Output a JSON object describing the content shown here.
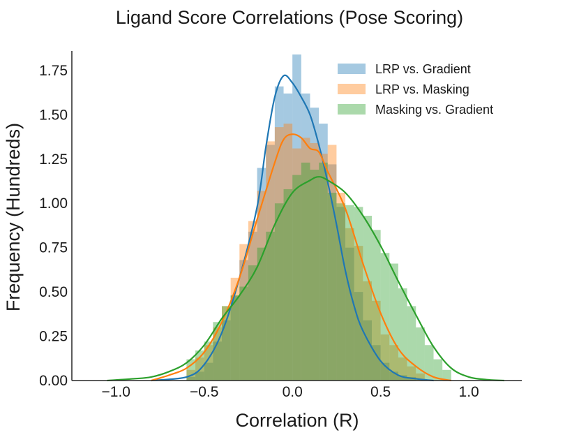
{
  "chart_data": {
    "type": "histogram",
    "title": "Ligand Score Correlations (Pose Scoring)",
    "xlabel": "Correlation (R)",
    "ylabel": "Frequency (Hundreds)",
    "xlim": [
      -1.25,
      1.3
    ],
    "ylim": [
      0,
      1.86
    ],
    "xticks": [
      -1.0,
      -0.5,
      0.0,
      0.5,
      1.0
    ],
    "xtick_labels": [
      "−1.0",
      "−0.5",
      "0.0",
      "0.5",
      "1.0"
    ],
    "yticks": [
      0.0,
      0.25,
      0.5,
      0.75,
      1.0,
      1.25,
      1.5,
      1.75
    ],
    "ytick_labels": [
      "0.00",
      "0.25",
      "0.50",
      "0.75",
      "1.00",
      "1.25",
      "1.50",
      "1.75"
    ],
    "grid": false,
    "legend_position": "top-right",
    "series": [
      {
        "name": "LRP vs. Gradient",
        "color": "#1f77b4",
        "bin_edges": [
          -0.6,
          -0.55,
          -0.5,
          -0.45,
          -0.4,
          -0.35,
          -0.3,
          -0.25,
          -0.2,
          -0.15,
          -0.1,
          -0.05,
          0.0,
          0.05,
          0.1,
          0.15,
          0.2,
          0.25,
          0.3,
          0.35,
          0.4,
          0.45,
          0.5,
          0.55,
          0.6,
          0.65,
          0.7
        ],
        "hist_values": [
          0.02,
          0.05,
          0.1,
          0.22,
          0.34,
          0.48,
          0.68,
          0.84,
          1.2,
          1.33,
          1.66,
          1.62,
          1.84,
          1.62,
          1.54,
          1.45,
          1.22,
          0.98,
          0.75,
          0.5,
          0.34,
          0.2,
          0.1,
          0.05,
          0.03,
          0.02
        ],
        "kde_x": [
          -0.8,
          -0.6,
          -0.5,
          -0.4,
          -0.3,
          -0.2,
          -0.15,
          -0.1,
          -0.05,
          0.0,
          0.05,
          0.1,
          0.15,
          0.2,
          0.25,
          0.3,
          0.35,
          0.4,
          0.5,
          0.6,
          0.7,
          0.8
        ],
        "kde_y": [
          0.0,
          0.02,
          0.09,
          0.27,
          0.58,
          0.98,
          1.32,
          1.6,
          1.72,
          1.68,
          1.6,
          1.5,
          1.33,
          1.12,
          0.88,
          0.62,
          0.42,
          0.28,
          0.11,
          0.03,
          0.01,
          0.0
        ]
      },
      {
        "name": "LRP vs. Masking",
        "color": "#ff7f0e",
        "bin_edges": [
          -0.6,
          -0.55,
          -0.5,
          -0.45,
          -0.4,
          -0.35,
          -0.3,
          -0.25,
          -0.2,
          -0.15,
          -0.1,
          -0.05,
          0.0,
          0.05,
          0.1,
          0.15,
          0.2,
          0.25,
          0.3,
          0.35,
          0.4,
          0.45,
          0.5,
          0.55,
          0.6,
          0.65,
          0.7,
          0.75
        ],
        "hist_values": [
          0.06,
          0.13,
          0.2,
          0.3,
          0.42,
          0.58,
          0.77,
          0.9,
          1.07,
          1.35,
          1.43,
          1.45,
          1.31,
          1.37,
          1.34,
          1.28,
          1.33,
          1.06,
          0.86,
          0.76,
          0.56,
          0.45,
          0.26,
          0.2,
          0.13,
          0.08,
          0.04
        ],
        "kde_x": [
          -0.8,
          -0.7,
          -0.6,
          -0.5,
          -0.4,
          -0.3,
          -0.2,
          -0.1,
          -0.05,
          0.0,
          0.05,
          0.1,
          0.15,
          0.2,
          0.3,
          0.4,
          0.5,
          0.6,
          0.7,
          0.8,
          0.9
        ],
        "kde_y": [
          0.0,
          0.03,
          0.07,
          0.16,
          0.33,
          0.58,
          0.91,
          1.23,
          1.36,
          1.39,
          1.37,
          1.31,
          1.29,
          1.18,
          0.97,
          0.66,
          0.38,
          0.18,
          0.08,
          0.02,
          0.0
        ]
      },
      {
        "name": "Masking vs. Gradient",
        "color": "#2ca02c",
        "bin_edges": [
          -0.6,
          -0.55,
          -0.5,
          -0.45,
          -0.4,
          -0.35,
          -0.3,
          -0.25,
          -0.2,
          -0.15,
          -0.1,
          -0.05,
          0.0,
          0.05,
          0.1,
          0.15,
          0.2,
          0.25,
          0.3,
          0.35,
          0.4,
          0.45,
          0.5,
          0.55,
          0.6,
          0.65,
          0.7,
          0.75,
          0.8,
          0.85,
          0.9
        ],
        "hist_values": [
          0.12,
          0.17,
          0.22,
          0.33,
          0.42,
          0.48,
          0.53,
          0.65,
          0.75,
          0.84,
          1.0,
          1.08,
          1.16,
          1.23,
          1.19,
          1.23,
          1.06,
          1.0,
          0.99,
          0.98,
          0.93,
          0.85,
          0.72,
          0.66,
          0.52,
          0.42,
          0.3,
          0.2,
          0.12,
          0.06
        ],
        "kde_x": [
          -1.05,
          -0.9,
          -0.8,
          -0.7,
          -0.6,
          -0.5,
          -0.4,
          -0.3,
          -0.2,
          -0.1,
          0.0,
          0.1,
          0.15,
          0.2,
          0.3,
          0.4,
          0.5,
          0.6,
          0.7,
          0.8,
          0.9,
          1.0,
          1.1,
          1.2
        ],
        "kde_y": [
          0.0,
          0.01,
          0.02,
          0.05,
          0.1,
          0.2,
          0.35,
          0.48,
          0.64,
          0.88,
          1.06,
          1.13,
          1.15,
          1.13,
          1.06,
          0.93,
          0.76,
          0.56,
          0.37,
          0.19,
          0.07,
          0.02,
          0.005,
          0.0
        ]
      }
    ]
  }
}
